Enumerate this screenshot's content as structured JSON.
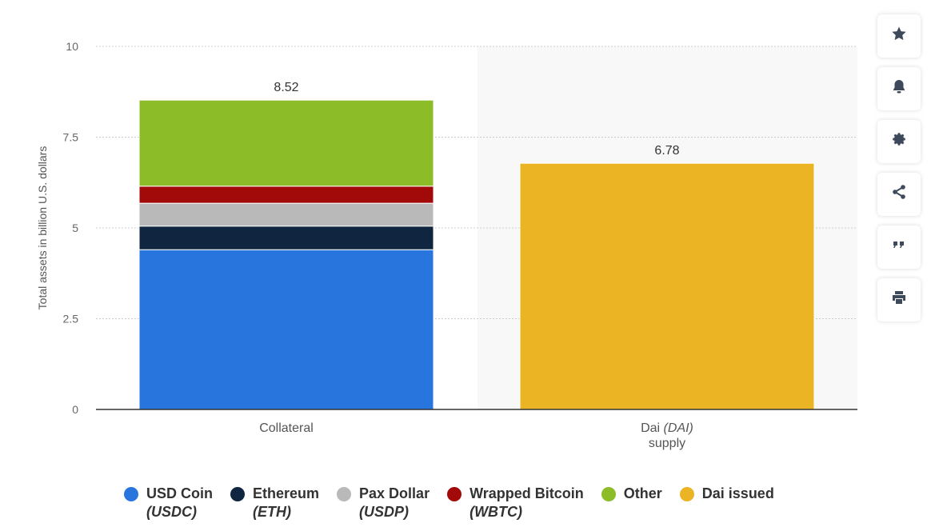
{
  "chart_data": {
    "type": "bar",
    "stacked": true,
    "ylabel": "Total assets in billion U.S. dollars",
    "ylim": [
      0,
      10
    ],
    "yticks": [
      "0",
      "2.5",
      "5",
      "7.5",
      "10"
    ],
    "grid": true,
    "legend_position": "bottom",
    "categories": [
      {
        "line1": "Collateral",
        "line2": "",
        "total_label": "8.52"
      },
      {
        "line1": "Dai",
        "line1_italic": "(DAI)",
        "line2": "supply",
        "total_label": "6.78"
      }
    ],
    "series": [
      {
        "name": "USD Coin",
        "sub": "(USDC)",
        "color": "#2876dd",
        "values": [
          4.4,
          0
        ]
      },
      {
        "name": "Ethereum",
        "sub": "(ETH)",
        "color": "#10253f",
        "values": [
          0.65,
          0
        ]
      },
      {
        "name": "Pax Dollar",
        "sub": "(USDP)",
        "color": "#b9b9b9",
        "values": [
          0.63,
          0
        ]
      },
      {
        "name": "Wrapped Bitcoin",
        "sub": "(WBTC)",
        "color": "#a20a0a",
        "values": [
          0.47,
          0
        ]
      },
      {
        "name": "Other",
        "sub": "",
        "color": "#8cbc28",
        "values": [
          2.37,
          0
        ]
      },
      {
        "name": "Dai issued",
        "sub": "",
        "color": "#ebb424",
        "values": [
          0,
          6.78
        ]
      }
    ]
  },
  "toolbar": {
    "buttons": [
      {
        "id": "bookmark",
        "icon": "star-icon"
      },
      {
        "id": "notify",
        "icon": "bell-icon"
      },
      {
        "id": "settings",
        "icon": "gear-icon"
      },
      {
        "id": "share",
        "icon": "share-icon"
      },
      {
        "id": "cite",
        "icon": "quote-icon"
      },
      {
        "id": "print",
        "icon": "print-icon"
      }
    ]
  }
}
